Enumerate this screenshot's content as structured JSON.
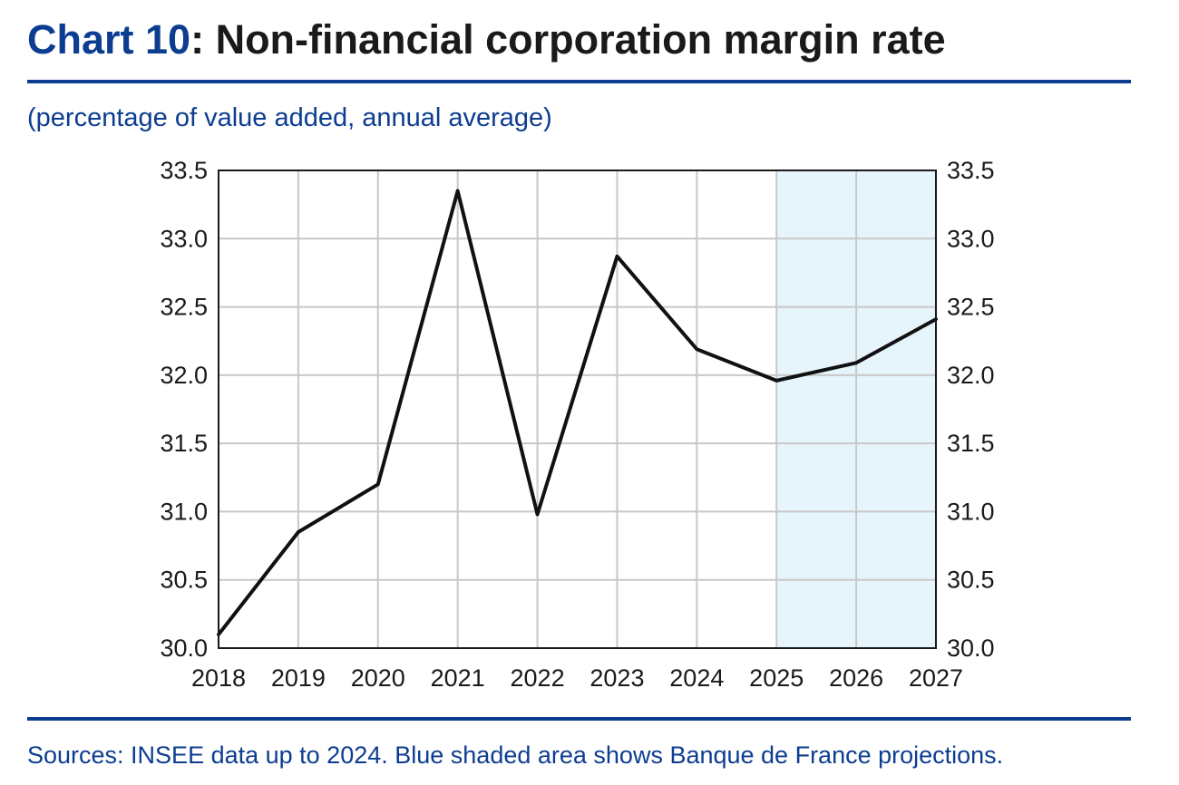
{
  "header": {
    "title_number": "Chart 10",
    "title_text": ": Non-financial corporation margin rate",
    "subtitle": "(percentage of value added, annual average)"
  },
  "footer": {
    "source": "Sources: INSEE data up to 2024. Blue shaded area shows Banque de France projections."
  },
  "colors": {
    "accent": "#0d3d91",
    "line": "#111111",
    "grid": "#c8c8c8",
    "shade": "#e6f4fc"
  },
  "chart_data": {
    "type": "line",
    "title": "",
    "xlabel": "",
    "ylabel": "",
    "categories": [
      "2018",
      "2019",
      "2020",
      "2021",
      "2022",
      "2023",
      "2024",
      "2025",
      "2026",
      "2027"
    ],
    "series": [
      {
        "values": [
          30.1,
          30.85,
          31.2,
          33.35,
          30.98,
          32.87,
          32.19,
          31.96,
          32.09,
          32.41
        ]
      }
    ],
    "ylim": [
      30.0,
      33.5
    ],
    "yticks": [
      "30.0",
      "30.5",
      "31.0",
      "31.5",
      "32.0",
      "32.5",
      "33.0",
      "33.5"
    ],
    "shaded_range": [
      "2025",
      "2027"
    ],
    "grid": true,
    "dual_y_axis": true
  }
}
